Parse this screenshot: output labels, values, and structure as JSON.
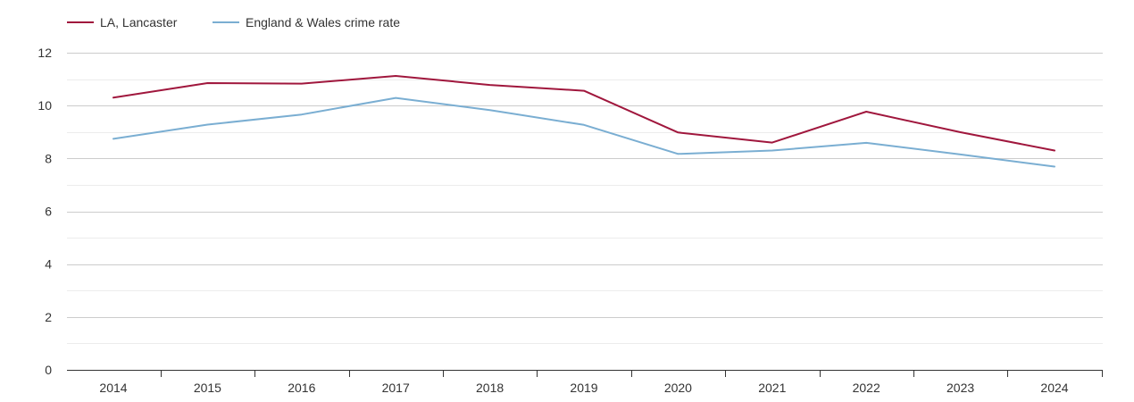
{
  "chart_data": {
    "type": "line",
    "title": "",
    "xlabel": "",
    "ylabel": "",
    "x": [
      "2014",
      "2015",
      "2016",
      "2017",
      "2018",
      "2019",
      "2020",
      "2021",
      "2022",
      "2023",
      "2024"
    ],
    "ylim": [
      0,
      12
    ],
    "yticks": [
      0,
      2,
      4,
      6,
      8,
      10,
      12
    ],
    "grid": true,
    "legend_position": "top-left",
    "series": [
      {
        "name": "LA, Lancaster",
        "color": "#a0173d",
        "values": [
          10.3,
          10.85,
          10.83,
          11.12,
          10.78,
          10.56,
          8.98,
          8.6,
          9.77,
          8.99,
          8.3
        ]
      },
      {
        "name": "England & Wales crime rate",
        "color": "#7aaed2",
        "values": [
          8.74,
          9.28,
          9.66,
          10.29,
          9.83,
          9.27,
          8.17,
          8.3,
          8.59,
          8.15,
          7.69
        ]
      }
    ]
  }
}
